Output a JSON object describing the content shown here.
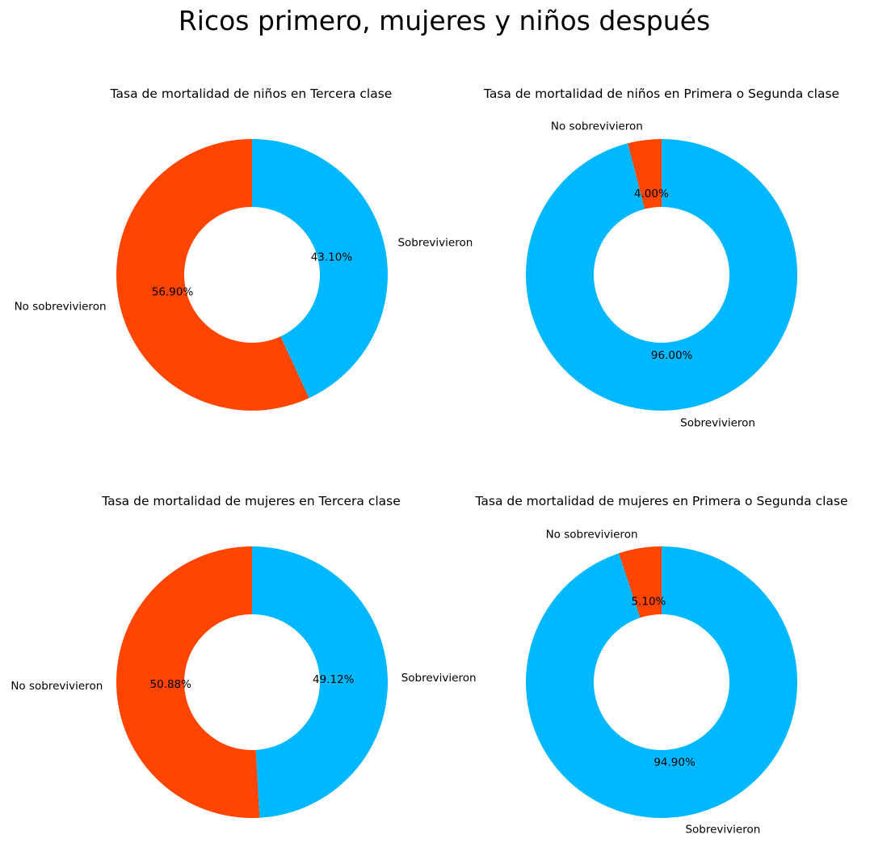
{
  "figure": {
    "title": "Ricos primero, mujeres y niños después"
  },
  "colors": {
    "survived": "#00B8FF",
    "not_survived": "#FF4500",
    "background": "#ffffff"
  },
  "chart_data": [
    {
      "type": "pie",
      "title": "Tasa de mortalidad de niños en Tercera clase",
      "labels": [
        "Sobrevivieron",
        "No sobrevivieron"
      ],
      "values": [
        43.1,
        56.9
      ],
      "pct_labels": [
        "43.10%",
        "56.90%"
      ],
      "colors": [
        "#00B8FF",
        "#FF4500"
      ],
      "donut": true,
      "start_angle_deg": 90,
      "direction": "clockwise"
    },
    {
      "type": "pie",
      "title": "Tasa de mortalidad de niños en Primera o Segunda clase",
      "labels": [
        "Sobrevivieron",
        "No sobrevivieron"
      ],
      "values": [
        96.0,
        4.0
      ],
      "pct_labels": [
        "96.00%",
        "4.00%"
      ],
      "colors": [
        "#00B8FF",
        "#FF4500"
      ],
      "donut": true,
      "start_angle_deg": 90,
      "direction": "clockwise"
    },
    {
      "type": "pie",
      "title": "Tasa de mortalidad de mujeres en Tercera clase",
      "labels": [
        "Sobrevivieron",
        "No sobrevivieron"
      ],
      "values": [
        49.12,
        50.88
      ],
      "pct_labels": [
        "49.12%",
        "50.88%"
      ],
      "colors": [
        "#00B8FF",
        "#FF4500"
      ],
      "donut": true,
      "start_angle_deg": 90,
      "direction": "clockwise"
    },
    {
      "type": "pie",
      "title": "Tasa de mortalidad de mujeres en Primera o Segunda clase",
      "labels": [
        "Sobrevivieron",
        "No sobrevivieron"
      ],
      "values": [
        94.9,
        5.1
      ],
      "pct_labels": [
        "94.90%",
        "5.10%"
      ],
      "colors": [
        "#00B8FF",
        "#FF4500"
      ],
      "donut": true,
      "start_angle_deg": 90,
      "direction": "clockwise"
    }
  ]
}
